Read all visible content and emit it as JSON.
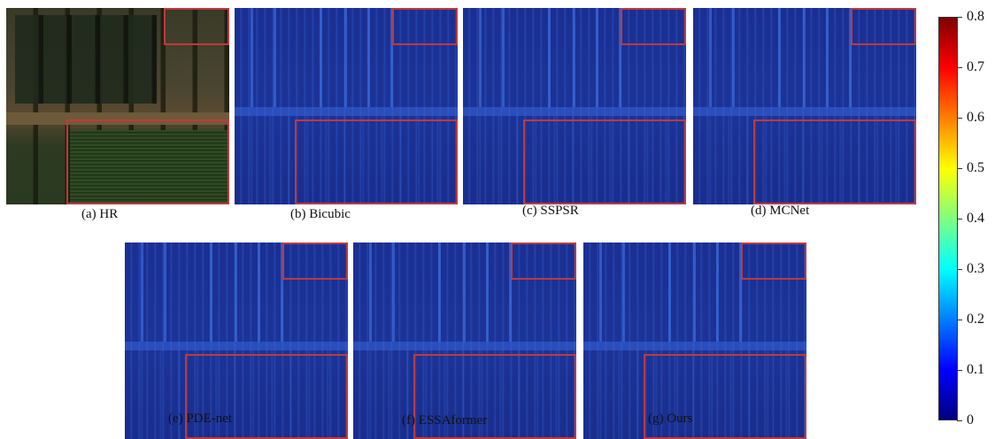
{
  "figure": {
    "panels": [
      {
        "id": "a",
        "caption": "(a) HR",
        "kind": "hr"
      },
      {
        "id": "b",
        "caption": "(b) Bicubic",
        "kind": "error"
      },
      {
        "id": "c",
        "caption": "(c) SSPSR",
        "kind": "error"
      },
      {
        "id": "d",
        "caption": "(d) MCNet",
        "kind": "error"
      },
      {
        "id": "e",
        "caption": "(e) PDE-net",
        "kind": "error"
      },
      {
        "id": "f",
        "caption": "(f) ESSAformer",
        "kind": "error"
      },
      {
        "id": "g",
        "caption": "(g) Ours",
        "kind": "error"
      }
    ],
    "colorbar": {
      "colormap": "jet",
      "range": [
        0,
        0.8
      ],
      "ticks": [
        "0.8",
        "0.7",
        "0.6",
        "0.5",
        "0.4",
        "0.3",
        "0.2",
        "0.1",
        "0"
      ],
      "colors": [
        "#7f0000",
        "#ff0000",
        "#ff7f00",
        "#ffff00",
        "#7fff7f",
        "#00ffff",
        "#007fff",
        "#0000ff",
        "#00007f"
      ]
    },
    "zoom_box_color": "#c0393b"
  }
}
